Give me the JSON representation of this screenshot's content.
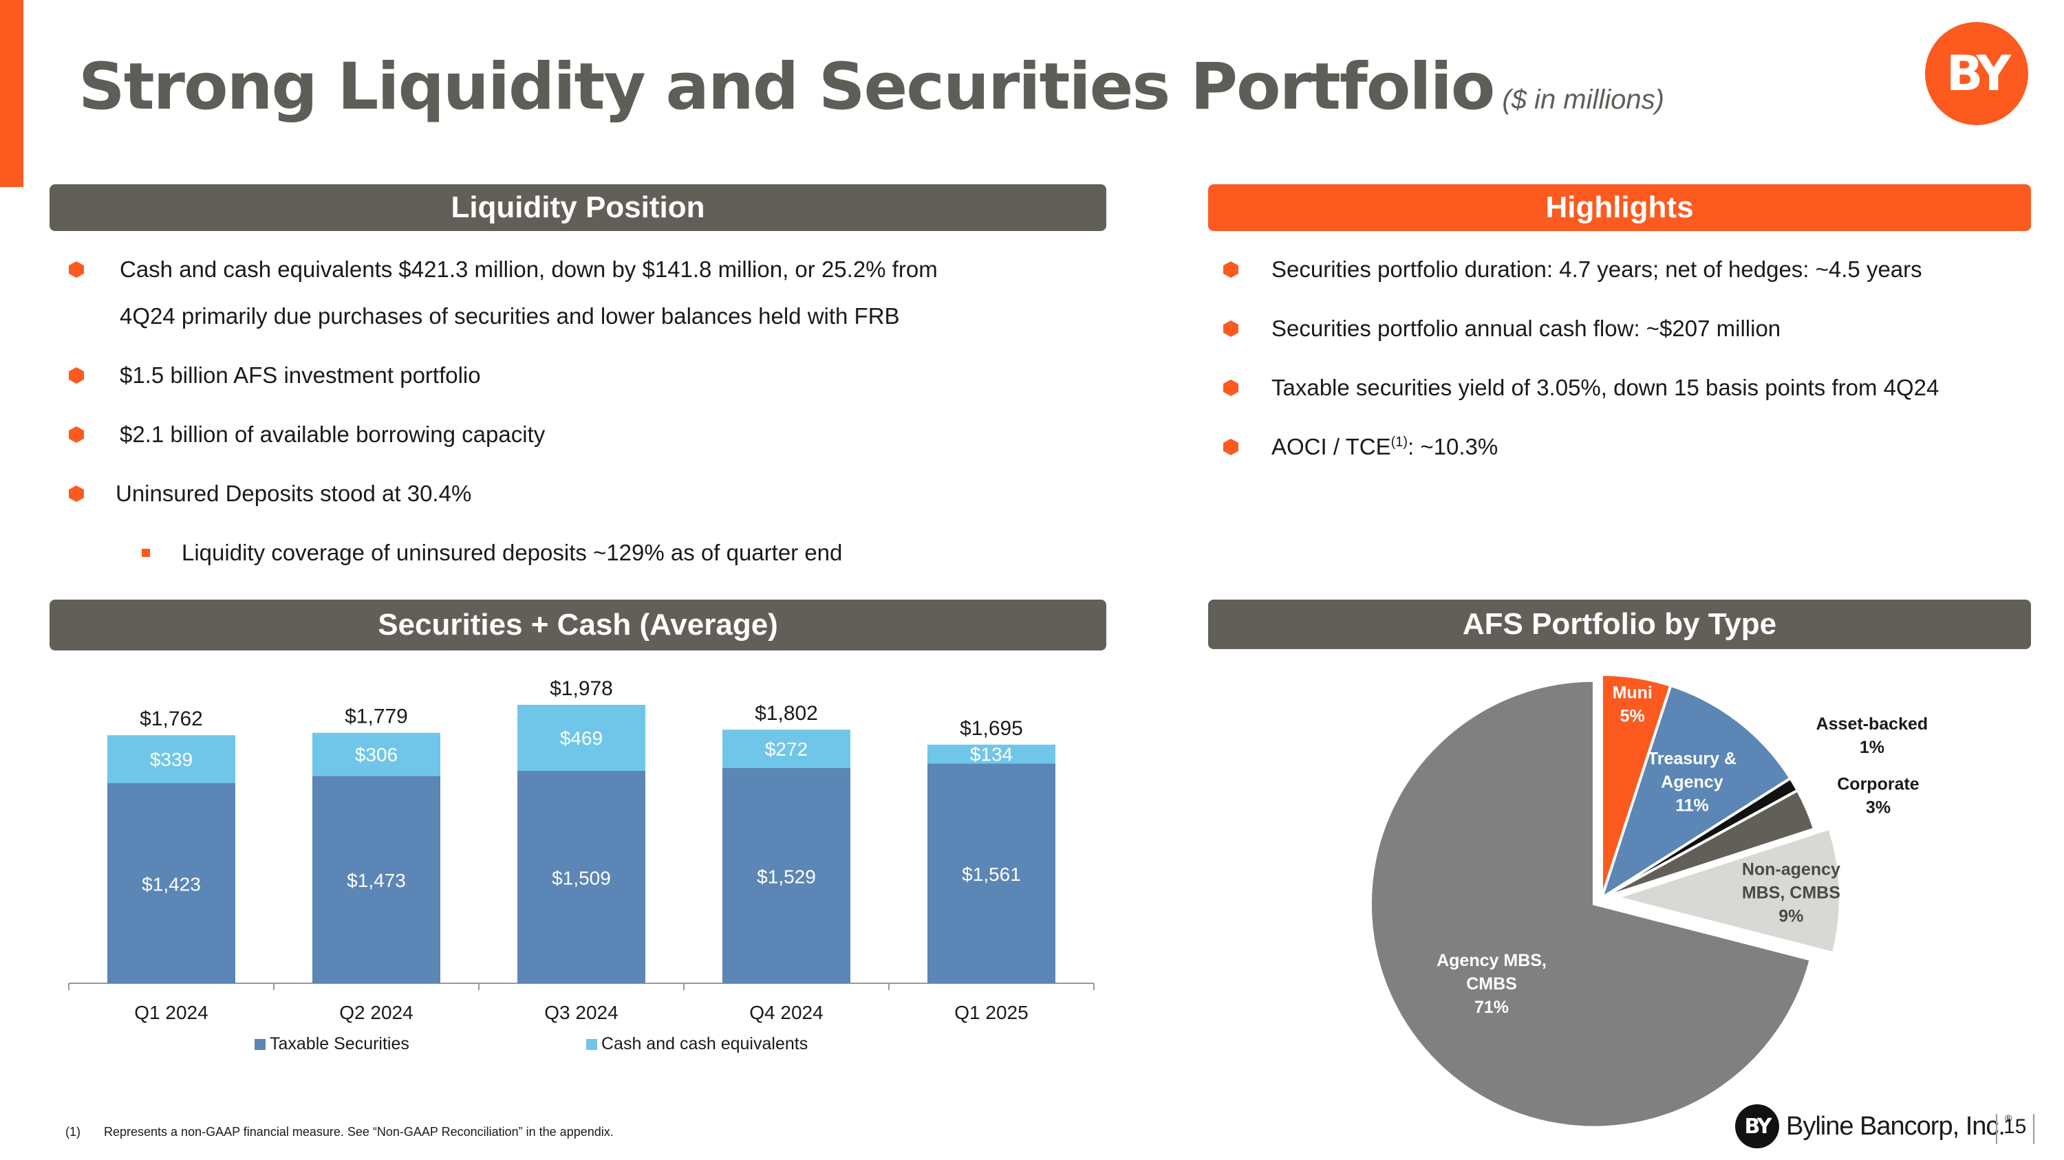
{
  "title": "Strong Liquidity and Securities Portfolio",
  "subtitle": "($ in millions)",
  "logo_text": "BY",
  "liquidity": {
    "header": "Liquidity Position",
    "bullets": [
      "Cash and cash equivalents $421.3 million, down by $141.8 million, or 25.2% from",
      "4Q24 primarily due purchases of securities and lower balances held with FRB",
      "$1.5 billion AFS investment portfolio",
      "$2.1 billion of available borrowing capacity",
      "Uninsured Deposits stood at 30.4%",
      "Liquidity coverage of uninsured deposits ~129% as of quarter end"
    ]
  },
  "highlights": {
    "header": "Highlights",
    "bullets": [
      "Securities portfolio duration: 4.7 years; net of hedges: ~4.5 years",
      "Securities portfolio annual cash flow: ~$207 million",
      "Taxable securities yield of 3.05%, down 15 basis points from 4Q24"
    ],
    "aoci_prefix": "AOCI / TCE",
    "aoci_sup": "(1)",
    "aoci_suffix": ": ~10.3%"
  },
  "colors": {
    "accent": "#fc5a1f",
    "header_gray": "#625f58",
    "taxable": "#5b86b5",
    "cash": "#70c6e8"
  },
  "chart_data": [
    {
      "type": "bar",
      "stacked": true,
      "title": "Securities + Cash (Average)",
      "categories": [
        "Q1 2024",
        "Q2 2024",
        "Q3 2024",
        "Q4 2024",
        "Q1 2025"
      ],
      "series": [
        {
          "name": "Taxable Securities",
          "values": [
            1423,
            1473,
            1509,
            1529,
            1561
          ],
          "labels": [
            "$1,423",
            "$1,473",
            "$1,509",
            "$1,529",
            "$1,561"
          ],
          "color": "#5b86b5"
        },
        {
          "name": "Cash and cash equivalents",
          "values": [
            339,
            306,
            469,
            272,
            134
          ],
          "labels": [
            "$339",
            "$306",
            "$469",
            "$272",
            "$134"
          ],
          "color": "#70c6e8"
        }
      ],
      "totals": [
        1762,
        1779,
        1978,
        1802,
        1695
      ],
      "total_labels": [
        "$1,762",
        "$1,779",
        "$1,978",
        "$1,802",
        "$1,695"
      ],
      "ylim": [
        0,
        2100
      ],
      "legend_position": "bottom"
    },
    {
      "type": "pie",
      "title": "AFS Portfolio by Type",
      "slices": [
        {
          "name": "Muni",
          "value": 5,
          "label_lines": [
            "Muni",
            "5%"
          ],
          "color": "#fc5a1f",
          "label_color": "#ffffff"
        },
        {
          "name": "Treasury & Agency",
          "value": 11,
          "label_lines": [
            "Treasury &",
            "Agency",
            "11%"
          ],
          "color": "#5b86b5",
          "label_color": "#ffffff"
        },
        {
          "name": "Asset-backed",
          "value": 1,
          "label_lines": [
            "Asset-backed",
            "1%"
          ],
          "color": "#111111",
          "label_color": "#1a1a1a"
        },
        {
          "name": "Corporate",
          "value": 3,
          "label_lines": [
            "Corporate",
            "3%"
          ],
          "color": "#625f58",
          "label_color": "#1a1a1a"
        },
        {
          "name": "Non-agency MBS, CMBS",
          "value": 9,
          "label_lines": [
            "Non-agency",
            "MBS, CMBS",
            "9%"
          ],
          "color": "#d8d8d4",
          "label_color": "#4a4a4a"
        },
        {
          "name": "Agency MBS, CMBS",
          "value": 71,
          "label_lines": [
            "Agency MBS,",
            "CMBS",
            "71%"
          ],
          "color": "#808080",
          "label_color": "#ffffff"
        }
      ]
    }
  ],
  "footnote": {
    "number": "(1)",
    "text": "Represents a non-GAAP financial measure.  See “Non-GAAP Reconciliation” in the appendix."
  },
  "footer": {
    "badge": "BY",
    "company": "Byline Bancorp, Inc.",
    "trademark": "®",
    "page_number": "15"
  }
}
